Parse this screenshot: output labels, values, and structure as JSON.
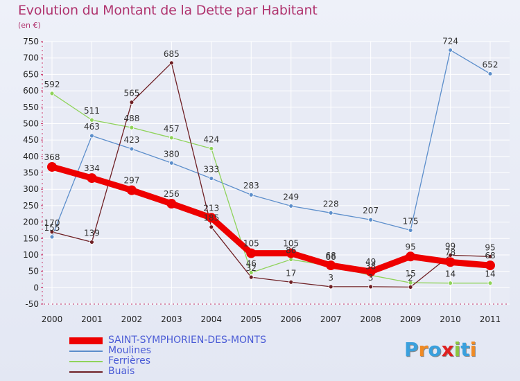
{
  "header": {
    "title": "Evolution du Montant de la Dette par Habitant",
    "subtitle": "(en €)"
  },
  "logo": {
    "text": "Proxiti"
  },
  "chart_data": {
    "type": "line",
    "x": [
      "2000",
      "2001",
      "2002",
      "2003",
      "2004",
      "2005",
      "2006",
      "2007",
      "2008",
      "2009",
      "2010",
      "2011"
    ],
    "ylim": [
      -50,
      750
    ],
    "yticks": [
      -50,
      0,
      50,
      100,
      150,
      200,
      250,
      300,
      350,
      400,
      450,
      500,
      550,
      600,
      650,
      700,
      750
    ],
    "grid": true,
    "legend_position": "bottom-left",
    "series": [
      {
        "name": "Moulines",
        "color": "#5c8ecb",
        "values": [
          155,
          463,
          423,
          380,
          333,
          283,
          249,
          228,
          207,
          175,
          724,
          652
        ]
      },
      {
        "name": "Ferrières",
        "color": "#8fd35a",
        "values": [
          592,
          511,
          488,
          457,
          424,
          46,
          86,
          66,
          38,
          15,
          14,
          14
        ]
      },
      {
        "name": "Buais",
        "color": "#6e1f24",
        "values": [
          170,
          139,
          565,
          685,
          185,
          32,
          17,
          3,
          3,
          2,
          99,
          95
        ]
      },
      {
        "name": "SAINT-SYMPHORIEN-DES-MONTS",
        "color": "#ee0000",
        "values": [
          368,
          334,
          297,
          256,
          213,
          105,
          105,
          68,
          49,
          95,
          78,
          68
        ]
      }
    ]
  }
}
